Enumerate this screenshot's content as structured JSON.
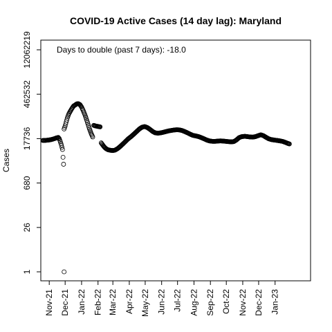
{
  "chart_data": {
    "type": "scatter",
    "title": "COVID-19 Active Cases (14 day lag): Maryland",
    "xlabel": "",
    "ylabel": "Cases",
    "annotation": "Days to double (past 7 days): -18.0",
    "y_scale": "log",
    "ylim": [
      1,
      12062219
    ],
    "y_ticks": [
      {
        "value": 1,
        "label": "1"
      },
      {
        "value": 26,
        "label": "26"
      },
      {
        "value": 680,
        "label": "680"
      },
      {
        "value": 17736,
        "label": "17736"
      },
      {
        "value": 462532,
        "label": "462532"
      },
      {
        "value": 12062219,
        "label": "12062219"
      }
    ],
    "xlim": [
      "2021-10-20",
      "2023-03-05"
    ],
    "x_ticks": [
      {
        "value": "2021-11-01",
        "label": "Nov-21"
      },
      {
        "value": "2021-12-01",
        "label": "Dec-21"
      },
      {
        "value": "2022-01-01",
        "label": "Jan-22"
      },
      {
        "value": "2022-02-01",
        "label": "Feb-22"
      },
      {
        "value": "2022-03-01",
        "label": "Mar-22"
      },
      {
        "value": "2022-04-01",
        "label": "Apr-22"
      },
      {
        "value": "2022-05-01",
        "label": "May-22"
      },
      {
        "value": "2022-06-01",
        "label": "Jun-22"
      },
      {
        "value": "2022-07-01",
        "label": "Jul-22"
      },
      {
        "value": "2022-08-01",
        "label": "Aug-22"
      },
      {
        "value": "2022-09-01",
        "label": "Sep-22"
      },
      {
        "value": "2022-10-01",
        "label": "Oct-22"
      },
      {
        "value": "2022-11-01",
        "label": "Nov-22"
      },
      {
        "value": "2022-12-01",
        "label": "Dec-22"
      },
      {
        "value": "2023-01-01",
        "label": "Jan-23"
      }
    ],
    "grid": false,
    "marker": "open-circle",
    "series": [
      {
        "points": [
          [
            "2021-10-20",
            15500
          ],
          [
            "2021-10-25",
            15600
          ],
          [
            "2021-10-30",
            15900
          ],
          [
            "2021-11-04",
            16400
          ],
          [
            "2021-11-09",
            17300
          ],
          [
            "2021-11-14",
            18500
          ],
          [
            "2021-11-18",
            19400
          ],
          [
            "2021-11-20",
            17500
          ],
          [
            "2021-11-22",
            14000
          ],
          [
            "2021-11-24",
            11000
          ],
          [
            "2021-11-26",
            8000
          ],
          [
            "2021-11-27",
            4500
          ],
          [
            "2021-11-28",
            2700
          ],
          [
            "2021-11-29",
            1
          ],
          [
            "2021-11-29",
            36000
          ],
          [
            "2021-12-01",
            45000
          ],
          [
            "2021-12-03",
            60000
          ],
          [
            "2021-12-05",
            80000
          ],
          [
            "2021-12-08",
            110000
          ],
          [
            "2021-12-11",
            135000
          ],
          [
            "2021-12-14",
            165000
          ],
          [
            "2021-12-17",
            195000
          ],
          [
            "2021-12-20",
            210000
          ],
          [
            "2021-12-23",
            228000
          ],
          [
            "2021-12-26",
            230000
          ],
          [
            "2021-12-29",
            215000
          ],
          [
            "2022-01-01",
            180000
          ],
          [
            "2022-01-04",
            140000
          ],
          [
            "2022-01-07",
            105000
          ],
          [
            "2022-01-10",
            75000
          ],
          [
            "2022-01-13",
            52000
          ],
          [
            "2022-01-16",
            36000
          ],
          [
            "2022-01-19",
            26000
          ],
          [
            "2022-01-22",
            20000
          ],
          [
            "2022-01-24",
            47000
          ],
          [
            "2022-01-27",
            45000
          ],
          [
            "2022-01-30",
            44000
          ],
          [
            "2022-02-02",
            43000
          ],
          [
            "2022-02-05",
            42000
          ],
          [
            "2022-02-07",
            13000
          ],
          [
            "2022-02-10",
            11000
          ],
          [
            "2022-02-13",
            9500
          ],
          [
            "2022-02-16",
            8500
          ],
          [
            "2022-02-20",
            7800
          ],
          [
            "2022-02-25",
            7500
          ],
          [
            "2022-03-01",
            7400
          ],
          [
            "2022-03-05",
            7600
          ],
          [
            "2022-03-10",
            8500
          ],
          [
            "2022-03-15",
            10000
          ],
          [
            "2022-03-20",
            12000
          ],
          [
            "2022-03-25",
            14500
          ],
          [
            "2022-03-30",
            17500
          ],
          [
            "2022-04-05",
            21000
          ],
          [
            "2022-04-10",
            25000
          ],
          [
            "2022-04-15",
            30000
          ],
          [
            "2022-04-20",
            36000
          ],
          [
            "2022-04-25",
            41000
          ],
          [
            "2022-04-30",
            43000
          ],
          [
            "2022-05-05",
            40000
          ],
          [
            "2022-05-10",
            35000
          ],
          [
            "2022-05-15",
            30000
          ],
          [
            "2022-05-20",
            27000
          ],
          [
            "2022-05-25",
            26500
          ],
          [
            "2022-05-30",
            27000
          ],
          [
            "2022-06-05",
            28500
          ],
          [
            "2022-06-10",
            30000
          ],
          [
            "2022-06-15",
            31500
          ],
          [
            "2022-06-20",
            32500
          ],
          [
            "2022-06-25",
            33500
          ],
          [
            "2022-06-30",
            34000
          ],
          [
            "2022-07-05",
            33500
          ],
          [
            "2022-07-10",
            32000
          ],
          [
            "2022-07-15",
            29500
          ],
          [
            "2022-07-20",
            27000
          ],
          [
            "2022-07-25",
            24500
          ],
          [
            "2022-07-30",
            22500
          ],
          [
            "2022-08-05",
            21500
          ],
          [
            "2022-08-10",
            20500
          ],
          [
            "2022-08-15",
            19000
          ],
          [
            "2022-08-20",
            17500
          ],
          [
            "2022-08-25",
            16000
          ],
          [
            "2022-08-30",
            15000
          ],
          [
            "2022-09-05",
            14500
          ],
          [
            "2022-09-10",
            14500
          ],
          [
            "2022-09-15",
            14800
          ],
          [
            "2022-09-20",
            15000
          ],
          [
            "2022-09-25",
            14800
          ],
          [
            "2022-09-30",
            14500
          ],
          [
            "2022-10-05",
            14200
          ],
          [
            "2022-10-10",
            14000
          ],
          [
            "2022-10-15",
            14200
          ],
          [
            "2022-10-20",
            16000
          ],
          [
            "2022-10-25",
            19000
          ],
          [
            "2022-10-30",
            20500
          ],
          [
            "2022-11-05",
            21000
          ],
          [
            "2022-11-10",
            20500
          ],
          [
            "2022-11-15",
            20000
          ],
          [
            "2022-11-20",
            19800
          ],
          [
            "2022-11-25",
            20500
          ],
          [
            "2022-11-30",
            22000
          ],
          [
            "2022-12-05",
            23500
          ],
          [
            "2022-12-10",
            22000
          ],
          [
            "2022-12-15",
            19500
          ],
          [
            "2022-12-20",
            17500
          ],
          [
            "2022-12-25",
            16500
          ],
          [
            "2022-12-30",
            16000
          ],
          [
            "2023-01-05",
            15500
          ],
          [
            "2023-01-10",
            15000
          ],
          [
            "2023-01-15",
            14500
          ],
          [
            "2023-01-20",
            13500
          ],
          [
            "2023-01-25",
            12500
          ],
          [
            "2023-01-28",
            12000
          ]
        ]
      }
    ]
  }
}
